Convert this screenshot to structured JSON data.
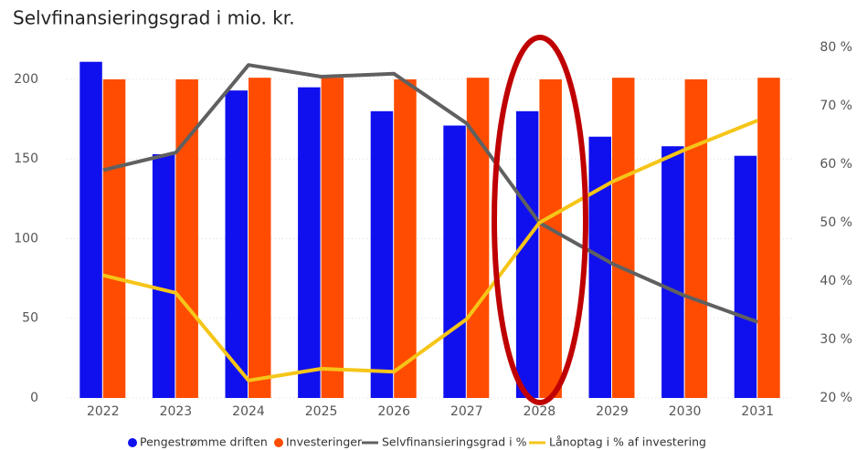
{
  "chart_data": {
    "type": "bar_line",
    "title": "Selvfinansieringsgrad i mio. kr.",
    "categories": [
      "2022",
      "2023",
      "2024",
      "2025",
      "2026",
      "2027",
      "2028",
      "2029",
      "2030",
      "2031"
    ],
    "series": [
      {
        "name": "Pengestrømme driften",
        "color": "#1010ee",
        "type": "bar",
        "values": [
          211,
          153,
          193,
          195,
          180,
          171,
          180,
          164,
          158,
          152
        ]
      },
      {
        "name": "Investeringer",
        "color": "#ff4c00",
        "type": "bar",
        "values": [
          200,
          200,
          201,
          201,
          200,
          201,
          200,
          201,
          200,
          201
        ]
      },
      {
        "name": "Selvfinansieringsgrad i %",
        "color": "#606060",
        "type": "line",
        "axis": "y2",
        "values": [
          59,
          62,
          77,
          75,
          75.5,
          67,
          50,
          43,
          37.5,
          33
        ]
      },
      {
        "name": "Lånoptag i % af investering",
        "color": "#f5c518",
        "type": "line",
        "axis": "y2",
        "values": [
          41,
          38,
          23,
          25,
          24.5,
          33.5,
          50,
          57,
          62.5,
          67.5
        ]
      }
    ],
    "ylim": [
      0,
      220
    ],
    "yticks": [
      0,
      50,
      100,
      150,
      200
    ],
    "y2lim": [
      20,
      80
    ],
    "y2ticks": [
      {
        "value": 20,
        "label": "20 %"
      },
      {
        "value": 30,
        "label": "30 %"
      },
      {
        "value": 40,
        "label": "40 %"
      },
      {
        "value": 50,
        "label": "50 %"
      },
      {
        "value": 60,
        "label": "60 %"
      },
      {
        "value": 70,
        "label": "70 %"
      },
      {
        "value": 80,
        "label": "80 %"
      }
    ],
    "grid": true,
    "legend": "bottom"
  }
}
